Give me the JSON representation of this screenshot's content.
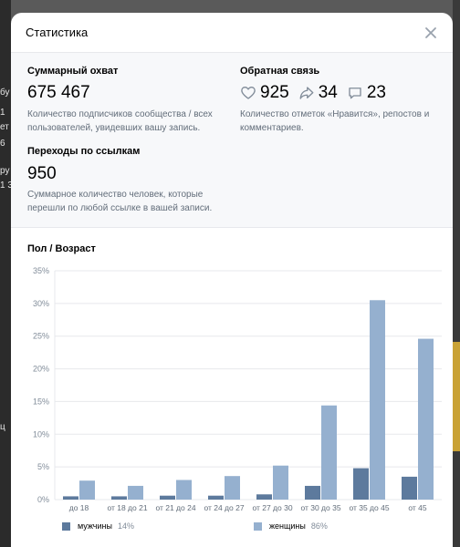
{
  "modal": {
    "title": "Статистика"
  },
  "reach": {
    "label": "Суммарный охват",
    "value": "675 467",
    "description": "Количество подписчиков сообщества / всех пользователей, увидевших вашу запись."
  },
  "feedback": {
    "label": "Обратная связь",
    "likes": "925",
    "reposts": "34",
    "comments": "23",
    "description": "Количество отметок «Нравится», репостов и комментариев."
  },
  "clicks": {
    "label": "Переходы по ссылкам",
    "value": "950",
    "description": "Суммарное количество человек, которые перешли по любой ссылке в вашей записи."
  },
  "section": {
    "title": "Пол / Возраст"
  },
  "background_fragments": [
    "бу",
    "1",
    "ет",
    "6",
    "ру",
    "1 3",
    "ц"
  ],
  "colors": {
    "men": "#5d7a9d",
    "women": "#95b0cf",
    "accent": "#626d7a"
  },
  "chart_data": {
    "type": "bar",
    "categories": [
      "до 18",
      "от 18 до 21",
      "от 21 до 24",
      "от 24 до 27",
      "от 27 до 30",
      "от 30 до 35",
      "от 35 до 45",
      "от 45"
    ],
    "series": [
      {
        "name": "мужчины",
        "share": "14%",
        "values": [
          0.5,
          0.5,
          0.6,
          0.6,
          0.8,
          2.1,
          4.8,
          3.5
        ]
      },
      {
        "name": "женщины",
        "share": "86%",
        "values": [
          2.9,
          2.1,
          3.0,
          3.6,
          5.2,
          14.4,
          30.5,
          24.6
        ]
      }
    ],
    "y_ticks": [
      "0%",
      "5%",
      "10%",
      "15%",
      "20%",
      "25%",
      "30%",
      "35%"
    ],
    "ylim": [
      0,
      35
    ],
    "grid": true,
    "legend_position": "bottom"
  }
}
